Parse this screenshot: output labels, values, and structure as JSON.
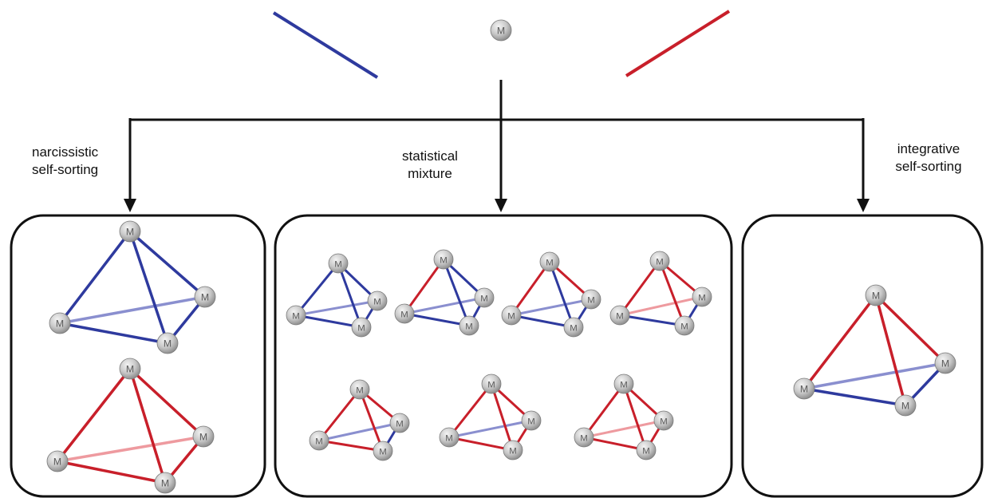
{
  "colors": {
    "blue": "#2e3a9e",
    "red": "#c81f2a",
    "faded_blue": "#8a8fcf",
    "faded_red": "#ee9a9f",
    "arrow": "#111111",
    "box": "#111111",
    "sphere_dark": "#8c8c8c",
    "sphere_light": "#f4f4f4"
  },
  "metal_label": "M",
  "labels": {
    "left_line1": "narcissistic",
    "left_line2": "self-sorting",
    "middle_line1": "statistical",
    "middle_line2": "mixture",
    "right_line1": "integrative",
    "right_line2": "self-sorting"
  },
  "ligand_colors": {
    "ligand_left": "blue",
    "ligand_right": "red"
  },
  "panels": [
    {
      "name": "narcissistic",
      "edge_colors": [
        [
          "blue",
          "blue",
          "blue",
          "blue",
          "blue",
          "blue"
        ],
        [
          "red",
          "red",
          "red",
          "red",
          "red",
          "red"
        ]
      ]
    },
    {
      "name": "statistical",
      "edge_colors": [
        [
          "blue",
          "blue",
          "blue",
          "blue",
          "blue",
          "blue"
        ],
        [
          "red",
          "blue",
          "blue",
          "blue",
          "blue",
          "blue"
        ],
        [
          "red",
          "red",
          "blue",
          "blue",
          "blue",
          "blue"
        ],
        [
          "red",
          "red",
          "red",
          "blue",
          "blue",
          "red"
        ],
        [
          "red",
          "red",
          "red",
          "red",
          "blue",
          "blue"
        ],
        [
          "red",
          "red",
          "red",
          "red",
          "red",
          "blue"
        ],
        [
          "red",
          "red",
          "red",
          "red",
          "red",
          "red"
        ]
      ]
    },
    {
      "name": "integrative",
      "edge_colors": [
        [
          "red",
          "red",
          "red",
          "blue",
          "blue",
          "blue"
        ]
      ]
    }
  ]
}
